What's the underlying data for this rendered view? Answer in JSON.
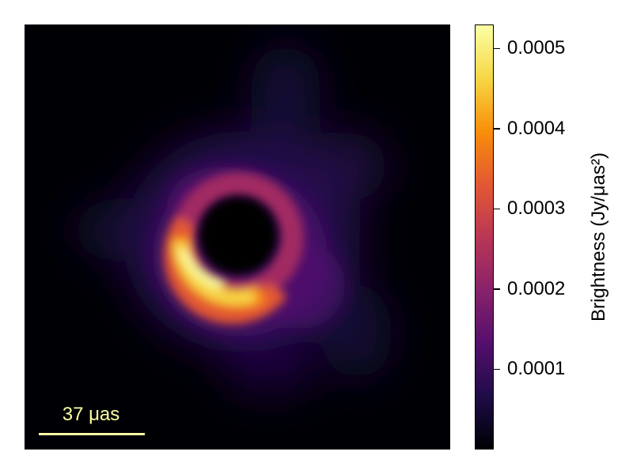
{
  "chart_data": {
    "type": "heatmap",
    "title": "",
    "xlabel": "",
    "ylabel": "",
    "colormap": "inferno",
    "colormap_stops": [
      "#000004",
      "#1f0c48",
      "#550f6d",
      "#88226a",
      "#ba3655",
      "#e35933",
      "#f98e09",
      "#f6d746",
      "#fcffa4"
    ],
    "colorbar": {
      "label": "Brightness (Jy/μas²)",
      "range": [
        0.0,
        0.00053
      ],
      "ticks": [
        0.0001,
        0.0002,
        0.0003,
        0.0004,
        0.0005
      ],
      "tick_labels": [
        "0.0001",
        "0.0002",
        "0.0003",
        "0.0004",
        "0.0005"
      ]
    },
    "scale_bar": {
      "label": "37 μas",
      "length_uas": 37
    },
    "image_fov_uas": 150,
    "image_description_values": {
      "ring_peak_brightness": 0.00052,
      "ring_peak_position_angle_deg": 215,
      "central_shadow_brightness": 0.0,
      "diffuse_halo_brightness": 4e-05
    }
  }
}
